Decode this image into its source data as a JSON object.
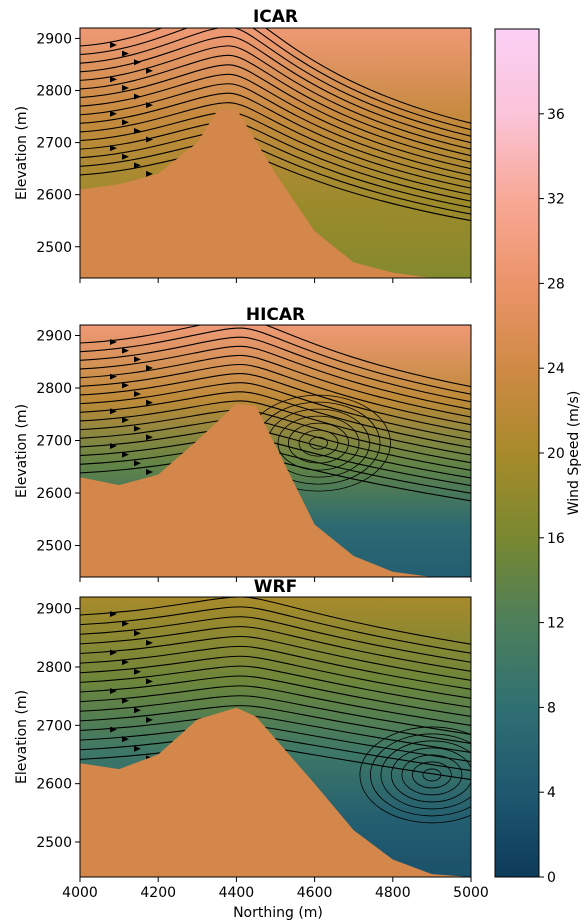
{
  "chart_data": {
    "type": "heatmap",
    "shared_xlabel": "Northing (m)",
    "xlim": [
      4000,
      5000
    ],
    "x_ticks": [
      4000,
      4200,
      4400,
      4600,
      4800,
      5000
    ],
    "colorbar": {
      "label": "Wind Speed (m/s)",
      "range": [
        0,
        40
      ],
      "ticks": [
        0,
        4,
        8,
        12,
        16,
        20,
        24,
        28,
        32,
        36
      ],
      "stops": [
        "#0d3b5a",
        "#1f5870",
        "#2f7072",
        "#4d7f5a",
        "#78882f",
        "#a88a2a",
        "#d08a45",
        "#ec946a",
        "#f8a896",
        "#fbc4d9",
        "#fbd0f6"
      ]
    },
    "terrain_color": "#d4874a",
    "streamline_color": "#000000",
    "panels": [
      {
        "title": "ICAR",
        "ylabel": "Elevation (m)",
        "ylim": [
          2440,
          2920
        ],
        "y_ticks": [
          2500,
          2600,
          2700,
          2800,
          2900
        ],
        "terrain_profile": [
          [
            4000,
            2610
          ],
          [
            4100,
            2620
          ],
          [
            4200,
            2640
          ],
          [
            4300,
            2700
          ],
          [
            4350,
            2760
          ],
          [
            4400,
            2765
          ],
          [
            4500,
            2640
          ],
          [
            4600,
            2530
          ],
          [
            4700,
            2470
          ],
          [
            4800,
            2450
          ],
          [
            4900,
            2440
          ],
          [
            5000,
            2440
          ]
        ],
        "wind_speed_range_ms": [
          16,
          30
        ]
      },
      {
        "title": "HICAR",
        "ylabel": "Elevation (m)",
        "ylim": [
          2440,
          2920
        ],
        "y_ticks": [
          2500,
          2600,
          2700,
          2800,
          2900
        ],
        "terrain_profile": [
          [
            4000,
            2630
          ],
          [
            4100,
            2615
          ],
          [
            4200,
            2635
          ],
          [
            4300,
            2700
          ],
          [
            4400,
            2770
          ],
          [
            4450,
            2765
          ],
          [
            4600,
            2540
          ],
          [
            4700,
            2480
          ],
          [
            4800,
            2450
          ],
          [
            4900,
            2440
          ],
          [
            5000,
            2440
          ]
        ],
        "wind_speed_range_ms": [
          4,
          30
        ]
      },
      {
        "title": "WRF",
        "ylabel": "Elevation (m)",
        "ylim": [
          2440,
          2920
        ],
        "y_ticks": [
          2500,
          2600,
          2700,
          2800,
          2900
        ],
        "terrain_profile": [
          [
            4000,
            2635
          ],
          [
            4100,
            2625
          ],
          [
            4200,
            2650
          ],
          [
            4300,
            2710
          ],
          [
            4400,
            2730
          ],
          [
            4450,
            2715
          ],
          [
            4600,
            2600
          ],
          [
            4700,
            2520
          ],
          [
            4800,
            2470
          ],
          [
            4900,
            2445
          ],
          [
            5000,
            2440
          ]
        ],
        "wind_speed_range_ms": [
          2,
          22
        ]
      }
    ]
  }
}
